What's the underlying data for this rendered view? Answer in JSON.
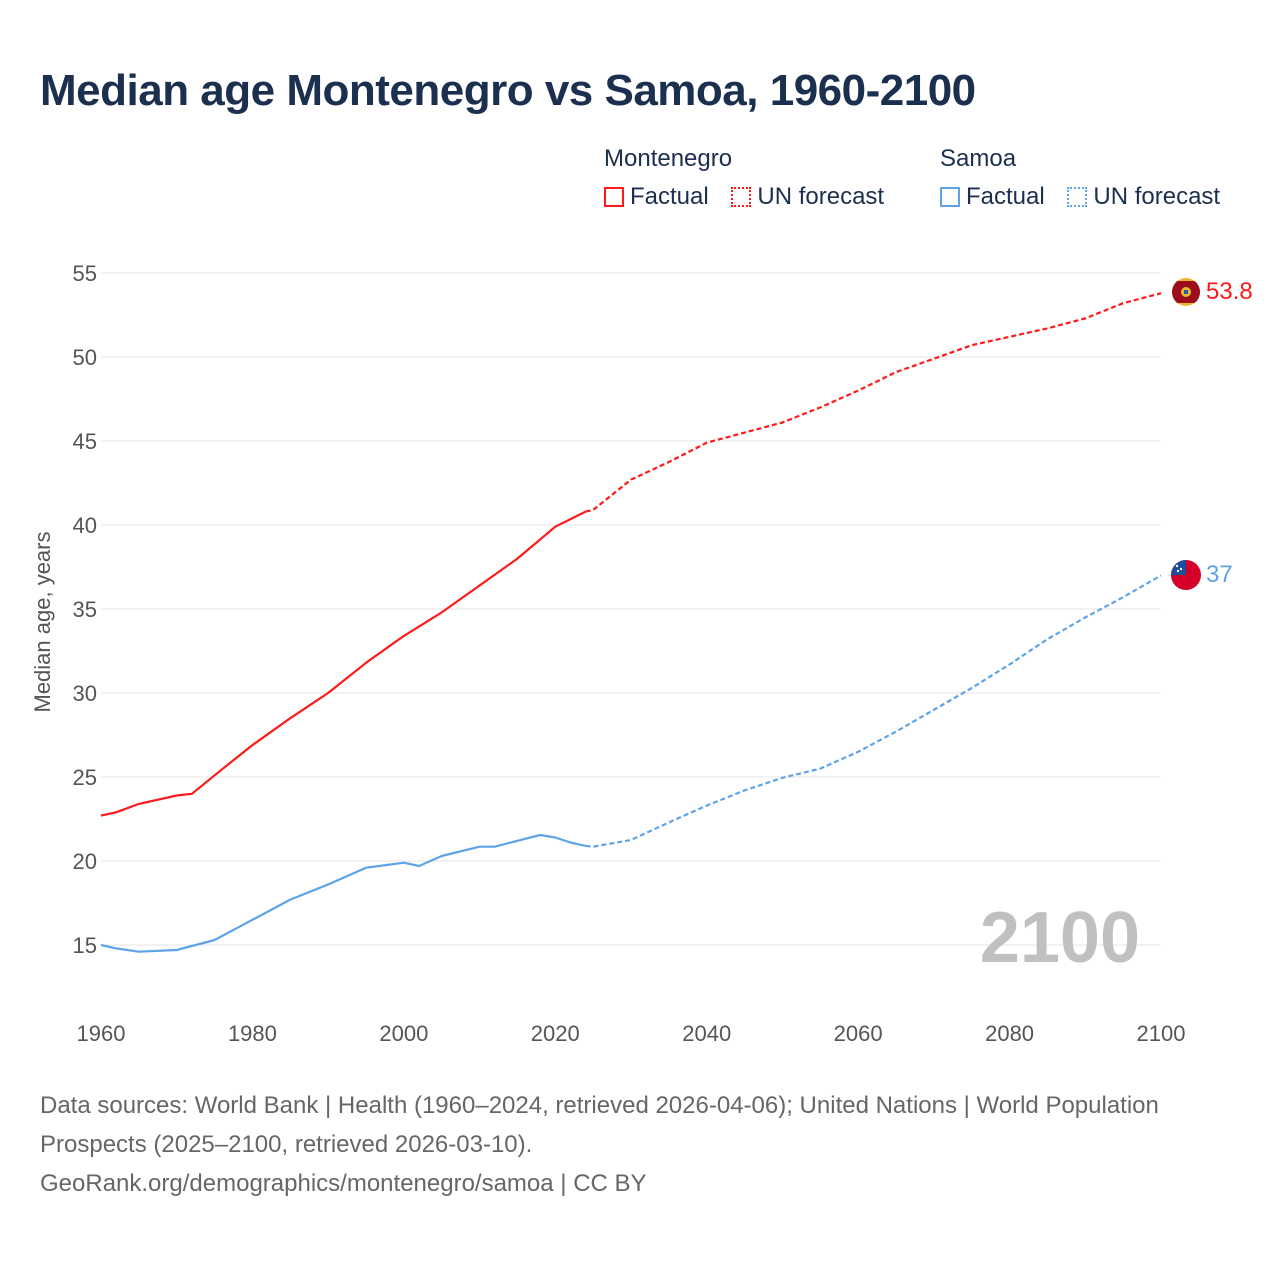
{
  "title": "Median age Montenegro vs Samoa, 1960-2100",
  "legend": {
    "groups": [
      {
        "name": "Montenegro",
        "color": "#ff1a1a",
        "factual": "Factual",
        "forecast": "UN forecast"
      },
      {
        "name": "Samoa",
        "color": "#5ea3e8",
        "factual": "Factual",
        "forecast": "UN forecast"
      }
    ]
  },
  "year_watermark": "2100",
  "footer": {
    "sources": "Data sources: World Bank | Health (1960–2024, retrieved 2026-04-06); United Nations | World Population Prospects (2025–2100, retrieved 2026-03-10).",
    "link": "GeoRank.org/demographics/montenegro/samoa | CC BY"
  },
  "chart_data": {
    "type": "line",
    "title": "Median age Montenegro vs Samoa, 1960-2100",
    "xlabel": "",
    "ylabel": "Median age, years",
    "xlim": [
      1960,
      2100
    ],
    "ylim": [
      12,
      55
    ],
    "xticks": [
      1960,
      1980,
      2000,
      2020,
      2040,
      2060,
      2080,
      2100
    ],
    "yticks": [
      15,
      20,
      25,
      30,
      35,
      40,
      45,
      50,
      55
    ],
    "grid": true,
    "legend_position": "top-right",
    "series": [
      {
        "name": "Montenegro",
        "color": "#ff1a1a",
        "end_label": "53.8",
        "factual": {
          "x": [
            1960,
            1962,
            1965,
            1970,
            1972,
            1975,
            1980,
            1985,
            1990,
            1995,
            2000,
            2005,
            2010,
            2015,
            2020,
            2024
          ],
          "y": [
            22.7,
            22.9,
            23.4,
            23.9,
            24.0,
            25.1,
            26.9,
            28.5,
            30.0,
            31.8,
            33.4,
            34.8,
            36.4,
            38.0,
            39.9,
            40.8
          ]
        },
        "forecast": {
          "x": [
            2024,
            2025,
            2030,
            2035,
            2040,
            2045,
            2050,
            2055,
            2060,
            2065,
            2070,
            2075,
            2080,
            2085,
            2090,
            2095,
            2100
          ],
          "y": [
            40.8,
            40.9,
            42.7,
            43.75,
            44.9,
            45.5,
            46.1,
            47.0,
            48.0,
            49.1,
            49.9,
            50.7,
            51.2,
            51.7,
            52.3,
            53.2,
            53.8
          ]
        }
      },
      {
        "name": "Samoa",
        "color": "#5ea3e8",
        "end_label": "37",
        "factual": {
          "x": [
            1960,
            1962,
            1965,
            1970,
            1975,
            1980,
            1985,
            1990,
            1995,
            2000,
            2002,
            2005,
            2010,
            2012,
            2015,
            2018,
            2020,
            2022,
            2024
          ],
          "y": [
            15.0,
            14.8,
            14.6,
            14.7,
            15.3,
            16.5,
            17.7,
            18.6,
            19.6,
            19.9,
            19.7,
            20.3,
            20.85,
            20.85,
            21.2,
            21.55,
            21.4,
            21.1,
            20.9
          ]
        },
        "forecast": {
          "x": [
            2024,
            2025,
            2030,
            2035,
            2040,
            2045,
            2050,
            2055,
            2060,
            2065,
            2070,
            2075,
            2080,
            2085,
            2090,
            2095,
            2100
          ],
          "y": [
            20.9,
            20.85,
            21.25,
            22.3,
            23.3,
            24.2,
            24.95,
            25.5,
            26.5,
            27.7,
            29.0,
            30.3,
            31.7,
            33.2,
            34.5,
            35.7,
            37.0
          ]
        }
      }
    ]
  }
}
